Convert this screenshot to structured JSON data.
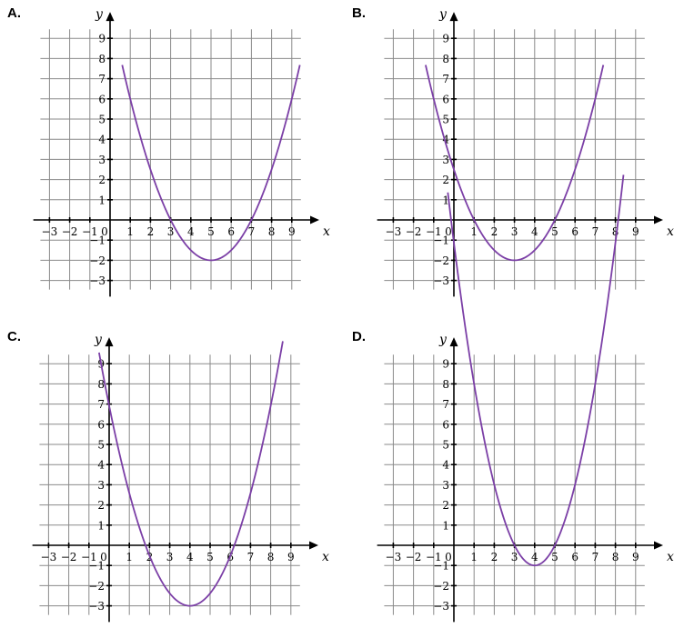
{
  "chart_data": [
    {
      "type": "line",
      "label": "A.",
      "xlabel": "x",
      "ylabel": "y",
      "xlim": [
        -3,
        9
      ],
      "ylim": [
        -3,
        9
      ],
      "x_ticks": [
        "−3",
        "−2",
        "−1",
        "0",
        "1",
        "2",
        "3",
        "4",
        "5",
        "6",
        "7",
        "8",
        "9"
      ],
      "y_ticks": [
        "−3",
        "−2",
        "−1",
        "1",
        "2",
        "3",
        "4",
        "5",
        "6",
        "7",
        "8",
        "9"
      ],
      "grid": true,
      "curve": {
        "form": "parabola",
        "vertex": [
          5,
          -2
        ],
        "roots": [
          3,
          7
        ],
        "domain": [
          0.6,
          9.4
        ]
      },
      "color": "#7b3fa6"
    },
    {
      "type": "line",
      "label": "B.",
      "xlabel": "x",
      "ylabel": "y",
      "xlim": [
        -3,
        9
      ],
      "ylim": [
        -3,
        9
      ],
      "x_ticks": [
        "−3",
        "−2",
        "−1",
        "0",
        "1",
        "2",
        "3",
        "4",
        "5",
        "6",
        "7",
        "8",
        "9"
      ],
      "y_ticks": [
        "−3",
        "−2",
        "−1",
        "1",
        "2",
        "3",
        "4",
        "5",
        "6",
        "7",
        "8",
        "9"
      ],
      "grid": true,
      "curve": {
        "form": "parabola",
        "vertex": [
          3,
          -2
        ],
        "roots": [
          1,
          5
        ],
        "domain": [
          -1.4,
          7.4
        ]
      },
      "color": "#7b3fa6"
    },
    {
      "type": "line",
      "label": "C.",
      "xlabel": "x",
      "ylabel": "y",
      "xlim": [
        -3,
        9
      ],
      "ylim": [
        -3,
        9
      ],
      "x_ticks": [
        "−3",
        "−2",
        "−1",
        "0",
        "1",
        "2",
        "3",
        "4",
        "5",
        "6",
        "7",
        "8",
        "9"
      ],
      "y_ticks": [
        "−3",
        "−2",
        "−1",
        "1",
        "2",
        "3",
        "4",
        "5",
        "6",
        "7",
        "8",
        "9"
      ],
      "grid": true,
      "curve": {
        "form": "parabola",
        "vertex": [
          4,
          -3
        ],
        "roots": [
          1.8,
          6.2
        ],
        "domain": [
          -0.5,
          8.6
        ]
      },
      "color": "#7b3fa6"
    },
    {
      "type": "line",
      "label": "D.",
      "xlabel": "x",
      "ylabel": "y",
      "xlim": [
        -3,
        9
      ],
      "ylim": [
        -3,
        9
      ],
      "x_ticks": [
        "−3",
        "−2",
        "−1",
        "0",
        "1",
        "2",
        "3",
        "4",
        "5",
        "6",
        "7",
        "8",
        "9"
      ],
      "y_ticks": [
        "−3",
        "−2",
        "−1",
        "1",
        "2",
        "3",
        "4",
        "5",
        "6",
        "7",
        "8",
        "9"
      ],
      "grid": true,
      "curve": {
        "form": "parabola",
        "vertex": [
          4,
          -1
        ],
        "roots": [
          3,
          5
        ],
        "domain": [
          -0.3,
          8.4
        ]
      },
      "color": "#7b3fa6"
    }
  ]
}
